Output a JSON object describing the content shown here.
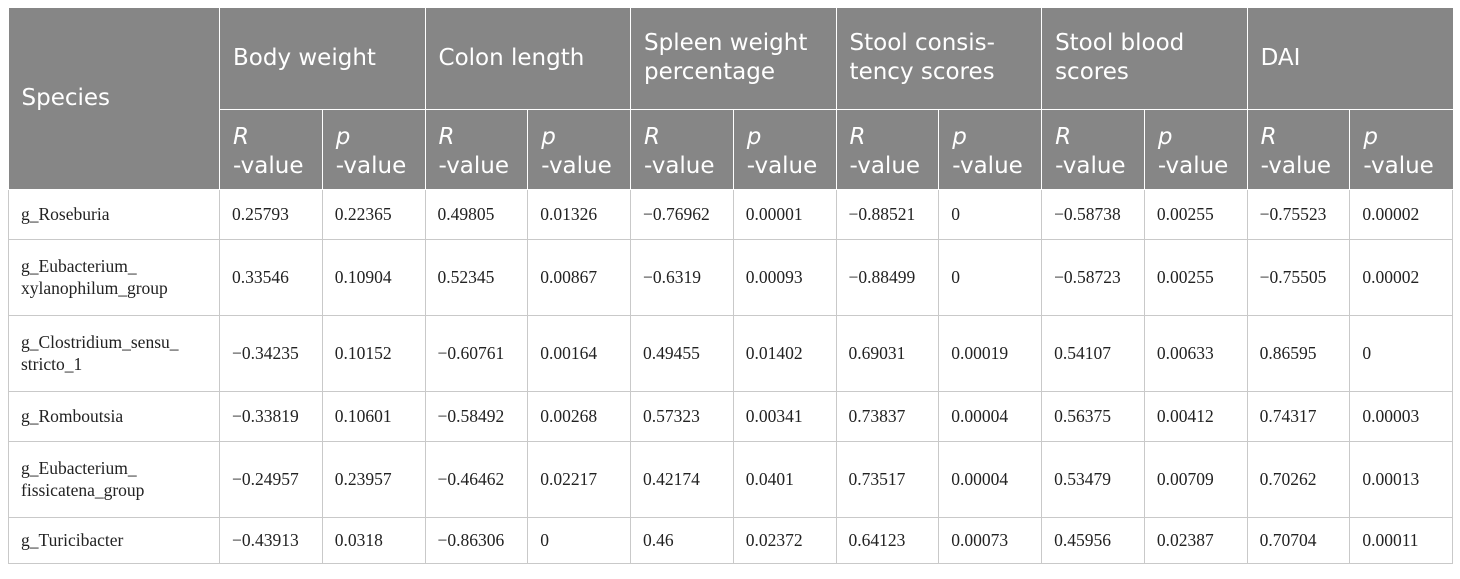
{
  "table": {
    "species_header": "Species",
    "groups": [
      "Body weight",
      "Colon length",
      "Spleen weight percentage",
      "Stool consis-tency scores",
      "Stool blood scores",
      "DAI"
    ],
    "sub_headers": {
      "r_letter": "R",
      "r_rest": "-value",
      "p_letter": "p",
      "p_rest": "-value"
    },
    "rows": [
      {
        "species": "g_Roseburia",
        "values": [
          "0.25793",
          "0.22365",
          "0.49805",
          "0.01326",
          "−0.76962",
          "0.00001",
          "−0.88521",
          "0",
          "−0.58738",
          "0.00255",
          "−0.75523",
          "0.00002"
        ]
      },
      {
        "species": "g_Eubacterium_ xylanophilum_group",
        "values": [
          "0.33546",
          "0.10904",
          "0.52345",
          "0.00867",
          "−0.6319",
          "0.00093",
          "−0.88499",
          "0",
          "−0.58723",
          "0.00255",
          "−0.75505",
          "0.00002"
        ]
      },
      {
        "species": "g_Clostridium_sensu_ stricto_1",
        "values": [
          "−0.34235",
          "0.10152",
          "−0.60761",
          "0.00164",
          "0.49455",
          "0.01402",
          "0.69031",
          "0.00019",
          "0.54107",
          "0.00633",
          "0.86595",
          "0"
        ]
      },
      {
        "species": "g_Romboutsia",
        "values": [
          "−0.33819",
          "0.10601",
          "−0.58492",
          "0.00268",
          "0.57323",
          "0.00341",
          "0.73837",
          "0.00004",
          "0.56375",
          "0.00412",
          "0.74317",
          "0.00003"
        ]
      },
      {
        "species": "g_Eubacterium_ fissicatena_group",
        "values": [
          "−0.24957",
          "0.23957",
          "−0.46462",
          "0.02217",
          "0.42174",
          "0.0401",
          "0.73517",
          "0.00004",
          "0.53479",
          "0.00709",
          "0.70262",
          "0.00013"
        ]
      },
      {
        "species": "g_Turicibacter",
        "values": [
          "−0.43913",
          "0.0318",
          "−0.86306",
          "0",
          "0.46",
          "0.02372",
          "0.64123",
          "0.00073",
          "0.45956",
          "0.02387",
          "0.70704",
          "0.00011"
        ]
      }
    ]
  }
}
